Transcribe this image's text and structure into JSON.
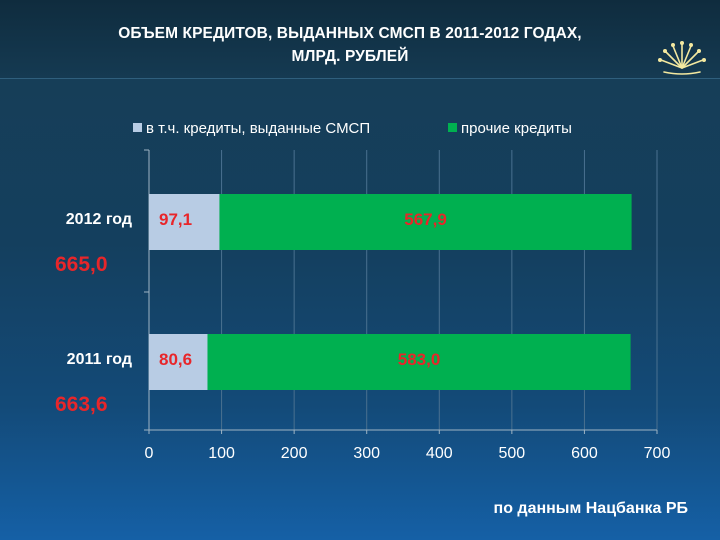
{
  "title_line1": "ОБЪЕМ КРЕДИТОВ, ВЫДАННЫХ СМСП В 2011-2012 ГОДАХ,",
  "title_line2": "МЛРД. РУБЛЕЙ",
  "source": "по данным Нацбанка РБ",
  "colors": {
    "smsp": "#b8cce4",
    "other": "#00b050",
    "value_text": "#e8262a"
  },
  "chart_data": {
    "type": "bar",
    "orientation": "horizontal",
    "stacked": true,
    "categories": [
      "2012 год",
      "2011 год"
    ],
    "series": [
      {
        "name": "в т.ч. кредиты, выданные СМСП",
        "values": [
          97.1,
          80.6
        ],
        "labels": [
          "97,1",
          "80,6"
        ]
      },
      {
        "name": "прочие кредиты",
        "values": [
          567.9,
          583.0
        ],
        "labels": [
          "567,9",
          "583,0"
        ]
      }
    ],
    "totals": [
      "665,0",
      "663,6"
    ],
    "xlim": [
      0,
      700
    ],
    "xticks": [
      0,
      100,
      200,
      300,
      400,
      500,
      600,
      700
    ],
    "grid": true,
    "legend": "top"
  }
}
